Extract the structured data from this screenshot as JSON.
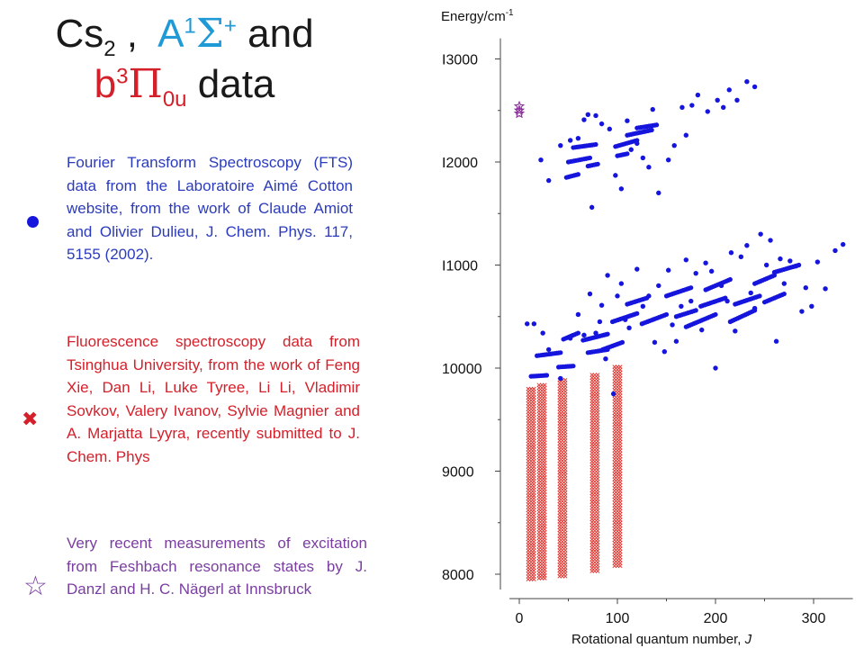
{
  "slide": {
    "title": {
      "molecule": "Cs",
      "molecule_sub": "2",
      "sep": " ,",
      "state1_letter": "A",
      "state1_sup": "1",
      "state1_symbol": "Σ",
      "state1_plus": "+",
      "and": "and",
      "state2_letter": "b",
      "state2_sup": "3",
      "state2_symbol": "Π",
      "state2_sub": "0u",
      "data_word": "data"
    },
    "legend": {
      "fts": {
        "text": "Fourier Transform Spectroscopy (FTS) data from the Laboratoire Aimé Cotton website, from the work of Claude Amiot and Olivier Dulieu, J. Chem. Phys. 117, 5155 (2002).",
        "color": "#2b3bbd",
        "marker": "dot"
      },
      "fluorescence": {
        "text": "Fluorescence spectroscopy data from Tsinghua University, from the work of Feng Xie, Dan Li, Luke Tyree, Li Li, Vladimir Sovkov, Valery Ivanov, Sylvie Magnier and A. Marjatta Lyyra, recently submitted to J. Chem. Phys",
        "color": "#d4202a",
        "marker_glyph": "✖"
      },
      "feshbach": {
        "text": "Very recent measurements of excitation from Feshbach resonance states by J. Danzl and H. C. Nägerl at Innsbruck",
        "color": "#7a3ea0",
        "marker_glyph": "☆"
      }
    }
  },
  "chart_data": {
    "type": "scatter",
    "ylabel_base": "Energy/cm",
    "ylabel_sup": "-1",
    "xlabel_text": "Rotational quantum number, ",
    "xlabel_var": "J",
    "x_ticks": [
      "0",
      "100",
      "200",
      "300"
    ],
    "y_ticks": [
      "8000",
      "9000",
      "10000",
      "I1000",
      "I2000",
      "I3000"
    ],
    "xlim": [
      -10,
      340
    ],
    "ylim": [
      7850,
      13200
    ],
    "colors": {
      "fts": "#1515dd",
      "fluorescence": "#e0302a",
      "feshbach": "#8a2f9a"
    },
    "series": [
      {
        "kind": "fts",
        "lower_dashes": [
          [
            [
              12,
              9920
            ],
            [
              28,
              9930
            ]
          ],
          [
            [
              18,
              10120
            ],
            [
              42,
              10150
            ]
          ],
          [
            [
              40,
              10010
            ],
            [
              55,
              10020
            ]
          ],
          [
            [
              45,
              10280
            ],
            [
              60,
              10340
            ]
          ],
          [
            [
              65,
              10270
            ],
            [
              90,
              10330
            ]
          ],
          [
            [
              70,
              10150
            ],
            [
              90,
              10180
            ]
          ],
          [
            [
              85,
              10180
            ],
            [
              105,
              10250
            ]
          ],
          [
            [
              95,
              10450
            ],
            [
              120,
              10530
            ]
          ],
          [
            [
              110,
              10620
            ],
            [
              130,
              10680
            ]
          ],
          [
            [
              125,
              10430
            ],
            [
              150,
              10520
            ]
          ],
          [
            [
              150,
              10700
            ],
            [
              175,
              10780
            ]
          ],
          [
            [
              160,
              10500
            ],
            [
              180,
              10560
            ]
          ],
          [
            [
              170,
              10400
            ],
            [
              200,
              10520
            ]
          ],
          [
            [
              185,
              10600
            ],
            [
              210,
              10680
            ]
          ],
          [
            [
              190,
              10760
            ],
            [
              215,
              10860
            ]
          ],
          [
            [
              215,
              10450
            ],
            [
              240,
              10560
            ]
          ],
          [
            [
              220,
              10620
            ],
            [
              245,
              10700
            ]
          ],
          [
            [
              240,
              10820
            ],
            [
              260,
              10900
            ]
          ],
          [
            [
              250,
              10640
            ],
            [
              270,
              10720
            ]
          ],
          [
            [
              260,
              10930
            ],
            [
              285,
              11000
            ]
          ]
        ],
        "upper_dashes": [
          [
            [
              48,
              11850
            ],
            [
              60,
              11880
            ]
          ],
          [
            [
              50,
              12000
            ],
            [
              72,
              12040
            ]
          ],
          [
            [
              55,
              12140
            ],
            [
              78,
              12170
            ]
          ],
          [
            [
              70,
              11960
            ],
            [
              80,
              11980
            ]
          ],
          [
            [
              98,
              12150
            ],
            [
              120,
              12210
            ]
          ],
          [
            [
              110,
              12260
            ],
            [
              135,
              12310
            ]
          ],
          [
            [
              120,
              12330
            ],
            [
              140,
              12360
            ]
          ],
          [
            [
              100,
              12060
            ],
            [
              110,
              12080
            ]
          ]
        ],
        "lower_points": [
          [
            8,
            10430
          ],
          [
            15,
            10430
          ],
          [
            24,
            10340
          ],
          [
            30,
            10180
          ],
          [
            42,
            9900
          ],
          [
            52,
            10290
          ],
          [
            60,
            10520
          ],
          [
            66,
            10320
          ],
          [
            72,
            10720
          ],
          [
            78,
            10340
          ],
          [
            82,
            10450
          ],
          [
            84,
            10610
          ],
          [
            88,
            10090
          ],
          [
            90,
            10900
          ],
          [
            96,
            9750
          ],
          [
            100,
            10700
          ],
          [
            104,
            10820
          ],
          [
            108,
            10470
          ],
          [
            112,
            10390
          ],
          [
            120,
            10960
          ],
          [
            126,
            10600
          ],
          [
            132,
            10700
          ],
          [
            138,
            10250
          ],
          [
            142,
            10800
          ],
          [
            148,
            10160
          ],
          [
            152,
            10950
          ],
          [
            156,
            10420
          ],
          [
            160,
            10260
          ],
          [
            165,
            10600
          ],
          [
            170,
            11050
          ],
          [
            175,
            10650
          ],
          [
            180,
            10920
          ],
          [
            186,
            10370
          ],
          [
            190,
            11020
          ],
          [
            196,
            10940
          ],
          [
            200,
            10000
          ],
          [
            206,
            10800
          ],
          [
            212,
            10650
          ],
          [
            216,
            11120
          ],
          [
            220,
            10360
          ],
          [
            226,
            11080
          ],
          [
            232,
            11190
          ],
          [
            236,
            10730
          ],
          [
            240,
            10580
          ],
          [
            246,
            11300
          ],
          [
            252,
            11000
          ],
          [
            256,
            11240
          ],
          [
            262,
            10260
          ],
          [
            266,
            11060
          ],
          [
            270,
            10820
          ],
          [
            276,
            11040
          ],
          [
            282,
            10990
          ],
          [
            288,
            10550
          ],
          [
            292,
            10780
          ],
          [
            298,
            10600
          ],
          [
            304,
            11030
          ],
          [
            312,
            10770
          ],
          [
            322,
            11140
          ],
          [
            330,
            11200
          ]
        ],
        "upper_points": [
          [
            22,
            12020
          ],
          [
            30,
            11820
          ],
          [
            42,
            12160
          ],
          [
            52,
            12210
          ],
          [
            60,
            12230
          ],
          [
            66,
            12410
          ],
          [
            70,
            12460
          ],
          [
            74,
            11560
          ],
          [
            78,
            12450
          ],
          [
            84,
            12370
          ],
          [
            92,
            12320
          ],
          [
            98,
            11870
          ],
          [
            104,
            11740
          ],
          [
            110,
            12400
          ],
          [
            114,
            12120
          ],
          [
            120,
            12180
          ],
          [
            126,
            12040
          ],
          [
            132,
            11950
          ],
          [
            136,
            12510
          ],
          [
            142,
            11700
          ],
          [
            152,
            12020
          ],
          [
            158,
            12160
          ],
          [
            166,
            12530
          ],
          [
            170,
            12260
          ],
          [
            176,
            12550
          ],
          [
            182,
            12650
          ],
          [
            192,
            12490
          ],
          [
            202,
            12600
          ],
          [
            208,
            12530
          ],
          [
            214,
            12700
          ],
          [
            222,
            12600
          ],
          [
            232,
            12780
          ],
          [
            240,
            12730
          ]
        ]
      },
      {
        "kind": "fluorescence",
        "columns": [
          {
            "J": 12,
            "from": 7950,
            "to": 9820
          },
          {
            "J": 23,
            "from": 7960,
            "to": 9860
          },
          {
            "J": 44,
            "from": 7980,
            "to": 9900
          },
          {
            "J": 77,
            "from": 8030,
            "to": 9960
          },
          {
            "J": 100,
            "from": 8080,
            "to": 10030
          }
        ]
      },
      {
        "kind": "feshbach",
        "points": [
          [
            0,
            12470
          ],
          [
            0,
            12500
          ],
          [
            0,
            12540
          ]
        ]
      }
    ]
  }
}
